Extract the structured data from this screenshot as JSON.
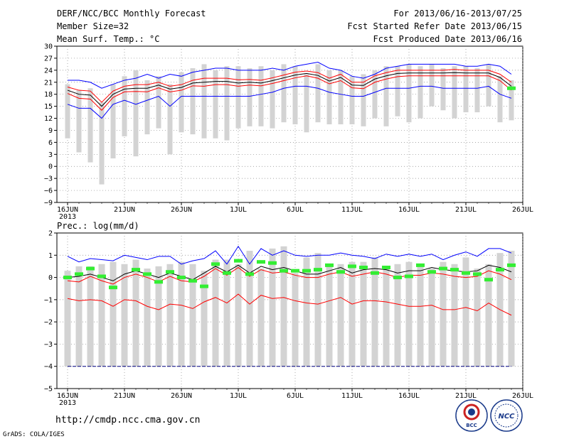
{
  "header": {
    "left": [
      "DERF/NCC/BCC Monthly Forecast",
      "Member Size=32",
      "Mean Surf. Temp.: °C"
    ],
    "right": [
      "For 2013/06/16-2013/07/25",
      "Fcst Started Refer Date 2013/06/15",
      "Fcst Produced Date 2013/06/16"
    ]
  },
  "footer": {
    "url": "http://cmdp.ncc.cma.gov.cn",
    "credit": "GrADS: COLA/IGES",
    "logo1": "BCC",
    "logo2": "NCC"
  },
  "colors": {
    "blue": "#0000ff",
    "red": "#ff0000",
    "gray": "#d3d3d3",
    "green": "#33ee33",
    "black": "#000000",
    "navy": "#000080"
  },
  "chart_data": [
    {
      "type": "line",
      "title": "Mean Surf. Temp.: °C",
      "x_tick_labels": [
        "16JUN",
        "21JUN",
        "26JUN",
        "1JUL",
        "6JUL",
        "11JUL",
        "16JUL",
        "21JUL",
        "26JUL"
      ],
      "x_year_label": "2013",
      "x_start_label": "16JUN 2013",
      "ylim": [
        -9,
        30
      ],
      "y_ticks": [
        -9,
        -6,
        -3,
        0,
        3,
        6,
        9,
        12,
        15,
        18,
        21,
        24,
        27,
        30
      ],
      "series": [
        {
          "name": "max",
          "color": "blue",
          "values": [
            21.5,
            21.5,
            21,
            19.5,
            20.5,
            21.5,
            22,
            23,
            22,
            23,
            22.5,
            23.5,
            24,
            24.5,
            24.5,
            24,
            24,
            24,
            24.5,
            24,
            25,
            25.5,
            26,
            24.5,
            24,
            22.5,
            22,
            23,
            24.5,
            25,
            25.5,
            25.5,
            25.5,
            25.5,
            25.5,
            25,
            25,
            25.5,
            25,
            23
          ]
        },
        {
          "name": "upper",
          "color": "red",
          "values": [
            19.8,
            19,
            18.8,
            16,
            18.8,
            20,
            20.4,
            20.4,
            21,
            20,
            20.4,
            21.5,
            22,
            22,
            22,
            21.6,
            21.7,
            21.5,
            22.1,
            22.8,
            23.5,
            23.8,
            23.4,
            22,
            23,
            21,
            21,
            22.6,
            23.4,
            24,
            24,
            24,
            24,
            24,
            24.2,
            24,
            24,
            24,
            23,
            21
          ]
        },
        {
          "name": "mean",
          "color": "black",
          "values": [
            19,
            18,
            17.8,
            15,
            18,
            19.3,
            19.5,
            19.5,
            20.3,
            19.3,
            19.7,
            20.8,
            21,
            21.2,
            21.2,
            20.8,
            21,
            20.8,
            21.4,
            22.1,
            22.8,
            23.2,
            22.7,
            21.3,
            22.2,
            20.3,
            20.2,
            21.8,
            22.6,
            23.2,
            23.3,
            23.3,
            23.3,
            23.3,
            23.4,
            23.3,
            23.3,
            23.3,
            22.2,
            20
          ]
        },
        {
          "name": "lower",
          "color": "red",
          "values": [
            18.2,
            17,
            16.8,
            14,
            17.2,
            18.6,
            18.7,
            18.6,
            19.6,
            18.6,
            19,
            20.1,
            20,
            20.4,
            20.4,
            20,
            20.3,
            20.1,
            20.7,
            21.4,
            22.1,
            22.6,
            22,
            20.6,
            21.4,
            19.6,
            19.4,
            21,
            21.8,
            22.4,
            22.6,
            22.6,
            22.6,
            22.6,
            22.6,
            22.6,
            22.6,
            22.6,
            21.4,
            19
          ]
        },
        {
          "name": "min",
          "color": "blue",
          "values": [
            15.5,
            14.5,
            14.5,
            12,
            15.5,
            16.5,
            15.5,
            16.5,
            17.5,
            15,
            17.5,
            17.5,
            17.5,
            17.5,
            17.5,
            17.5,
            17.5,
            18,
            18.5,
            19.5,
            20,
            20,
            19.5,
            18.5,
            18,
            17.5,
            17.5,
            18.5,
            19.5,
            19.5,
            19.5,
            20,
            20,
            19.5,
            19.5,
            19.5,
            19.5,
            20,
            18,
            17
          ]
        }
      ],
      "boxes": {
        "color": "gray",
        "low": [
          7,
          3.5,
          1,
          -4.5,
          2,
          7.5,
          2.5,
          8,
          9.5,
          3,
          8.5,
          8,
          7,
          7,
          6.5,
          9.5,
          10,
          10,
          9.5,
          11,
          10.5,
          8.5,
          11,
          10.5,
          10.5,
          10.5,
          10,
          12,
          10,
          12.5,
          11,
          12,
          15,
          14,
          12,
          13.5,
          13.5,
          15,
          11,
          11.5
        ],
        "high": [
          20.5,
          19,
          19.5,
          16,
          20.5,
          22.5,
          24,
          21.5,
          22.5,
          20.5,
          23.5,
          24.5,
          25.5,
          24,
          25,
          25,
          24.5,
          25,
          24,
          25.5,
          25,
          23,
          25.5,
          24,
          24,
          22.5,
          23,
          24,
          25,
          25,
          25.5,
          25,
          25.5,
          24.5,
          25,
          25,
          24.5,
          25.5,
          22.5,
          21.5
        ]
      },
      "obs_markers": {
        "color": "green",
        "values": [
          null,
          null,
          null,
          null,
          null,
          null,
          null,
          null,
          null,
          null,
          null,
          null,
          null,
          null,
          null,
          null,
          null,
          null,
          null,
          null,
          null,
          null,
          null,
          null,
          null,
          null,
          null,
          null,
          null,
          null,
          null,
          null,
          null,
          null,
          null,
          null,
          null,
          null,
          null,
          19.5
        ]
      }
    },
    {
      "type": "line",
      "title": "Prec.: log(mm/d)",
      "x_tick_labels": [
        "16JUN",
        "21JUN",
        "26JUN",
        "1JUL",
        "6JUL",
        "11JUL",
        "16JUL",
        "21JUL",
        "26JUL"
      ],
      "x_year_label": "2013",
      "x_start_label": "16JUN 2013",
      "ylim": [
        -5,
        2
      ],
      "y_ticks": [
        -5,
        -4,
        -3,
        -2,
        -1,
        0,
        1,
        2
      ],
      "series": [
        {
          "name": "max",
          "color": "blue",
          "values": [
            0.95,
            0.7,
            0.85,
            0.8,
            0.75,
            1.0,
            0.9,
            0.8,
            0.95,
            0.95,
            0.6,
            0.75,
            0.85,
            1.2,
            0.6,
            1.4,
            0.6,
            1.3,
            1.0,
            1.2,
            1.0,
            0.95,
            1.0,
            1.0,
            1.1,
            1.0,
            0.95,
            0.85,
            1.05,
            0.95,
            1.05,
            0.95,
            1.05,
            0.8,
            1.0,
            1.15,
            0.95,
            1.3,
            1.3,
            1.1
          ]
        },
        {
          "name": "mean",
          "color": "black",
          "values": [
            0.0,
            0.05,
            0.15,
            0.0,
            -0.15,
            0.15,
            0.3,
            0.15,
            0.0,
            0.2,
            0.05,
            -0.1,
            0.2,
            0.5,
            0.25,
            0.55,
            0.2,
            0.5,
            0.35,
            0.45,
            0.3,
            0.15,
            0.15,
            0.3,
            0.45,
            0.2,
            0.35,
            0.4,
            0.35,
            0.2,
            0.3,
            0.3,
            0.45,
            0.35,
            0.3,
            0.25,
            0.3,
            0.55,
            0.45,
            0.25
          ]
        },
        {
          "name": "upper",
          "color": "red",
          "values": [
            -0.15,
            -0.2,
            0.05,
            -0.15,
            -0.3,
            0.0,
            0.15,
            0.0,
            -0.2,
            0.05,
            -0.15,
            -0.2,
            0.05,
            0.4,
            0.1,
            0.45,
            0.05,
            0.35,
            0.2,
            0.25,
            0.1,
            0.0,
            0.0,
            0.15,
            0.25,
            0.05,
            0.15,
            0.25,
            0.15,
            0.0,
            0.1,
            0.1,
            0.2,
            0.15,
            0.05,
            0.0,
            0.05,
            0.3,
            0.15,
            -0.1
          ]
        },
        {
          "name": "lower",
          "color": "red",
          "values": [
            -0.95,
            -1.05,
            -1.0,
            -1.05,
            -1.3,
            -1.0,
            -1.05,
            -1.3,
            -1.45,
            -1.2,
            -1.25,
            -1.4,
            -1.1,
            -0.9,
            -1.15,
            -0.75,
            -1.2,
            -0.8,
            -0.95,
            -0.9,
            -1.05,
            -1.15,
            -1.2,
            -1.05,
            -0.9,
            -1.2,
            -1.05,
            -1.05,
            -1.1,
            -1.2,
            -1.3,
            -1.3,
            -1.25,
            -1.45,
            -1.45,
            -1.35,
            -1.5,
            -1.15,
            -1.45,
            -1.7
          ]
        },
        {
          "name": "floor",
          "color": "navy",
          "values": [
            -4,
            -4,
            -4,
            -4,
            -4,
            -4,
            -4,
            -4,
            -4,
            -4,
            -4,
            -4,
            -4,
            -4,
            -4,
            -4,
            -4,
            -4,
            -4,
            -4,
            -4,
            -4,
            -4,
            -4,
            -4,
            -4,
            -4,
            -4,
            -4,
            -4,
            -4,
            -4,
            -4,
            -4,
            -4,
            -4,
            -4,
            -4,
            -4,
            -4
          ]
        }
      ],
      "boxes": {
        "color": "gray",
        "low": [
          -4,
          -4,
          -4,
          -4,
          -4,
          -4,
          -4,
          -4,
          -4,
          -4,
          -4,
          -4,
          -4,
          -4,
          -4,
          -4,
          -4,
          -4,
          -4,
          -4,
          -4,
          -4,
          -4,
          -4,
          -4,
          -4,
          -4,
          -4,
          -4,
          -4,
          -4,
          -4,
          -4,
          -4,
          -4,
          -4,
          -4,
          -4,
          -4,
          -4
        ],
        "high": [
          0.3,
          0.5,
          0.5,
          0.6,
          0.7,
          0.6,
          0.8,
          0.4,
          0.5,
          0.6,
          0.7,
          0.6,
          0.3,
          0.8,
          0.8,
          0.6,
          1.2,
          0.4,
          1.3,
          1.4,
          0.2,
          0.9,
          1.1,
          0.5,
          0.6,
          0.7,
          0.7,
          0.9,
          0.4,
          0.6,
          0.7,
          0.6,
          0.4,
          0.7,
          0.6,
          0.9,
          0.4,
          0.6,
          1.1,
          1.2
        ]
      },
      "obs_markers": {
        "color": "green",
        "values": [
          0.0,
          0.15,
          0.4,
          0.05,
          -0.45,
          null,
          0.35,
          0.15,
          -0.2,
          0.25,
          0.0,
          -0.15,
          -0.4,
          0.6,
          0.2,
          0.75,
          0.15,
          0.7,
          0.65,
          0.3,
          0.3,
          0.3,
          0.35,
          0.55,
          0.25,
          0.5,
          0.45,
          0.2,
          0.45,
          0.0,
          0.05,
          0.55,
          0.25,
          0.4,
          0.35,
          0.2,
          0.15,
          -0.1,
          0.35,
          0.55
        ]
      }
    }
  ]
}
